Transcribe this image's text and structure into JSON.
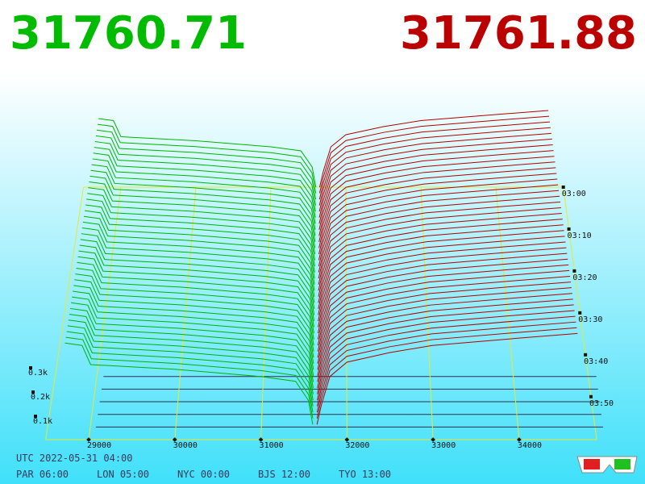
{
  "bid_price": 31760.71,
  "ask_price": 31761.88,
  "chart_data": {
    "type": "depth3d",
    "xlim": [
      28500,
      34900
    ],
    "xticks": [
      29000,
      30000,
      31000,
      32000,
      33000,
      34000
    ],
    "zticks": [
      {
        "value": 100,
        "label": "0.1k"
      },
      {
        "value": 200,
        "label": "0.2k"
      },
      {
        "value": 300,
        "label": "0.3k"
      }
    ],
    "time_ticks": [
      "03:00",
      "03:10",
      "03:20",
      "03:30",
      "03:40",
      "03:50"
    ],
    "bids": {
      "color": "#00b400",
      "prices": [
        28700,
        28800,
        28900,
        29000,
        30000,
        31000,
        31400,
        31550,
        31600
      ],
      "values": [
        340,
        335,
        330,
        250,
        230,
        200,
        180,
        100,
        0
      ]
    },
    "asks": {
      "color": "#b40000",
      "prices": [
        31650,
        31700,
        31800,
        32000,
        32500,
        33000,
        34000,
        34700
      ],
      "values": [
        0,
        80,
        200,
        260,
        300,
        330,
        360,
        380
      ]
    }
  },
  "footer": {
    "utc": "UTC 2022-05-31 04:00",
    "cities": [
      "PAR 06:00",
      "LON 05:00",
      "NYC 00:00",
      "BJS 12:00",
      "TYO 13:00"
    ]
  }
}
